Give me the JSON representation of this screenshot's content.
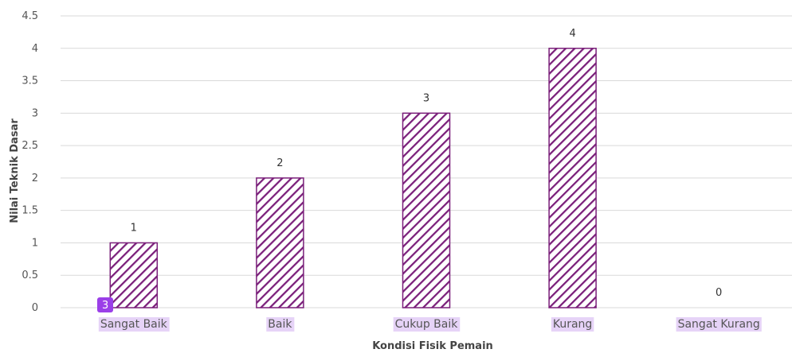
{
  "chart_data": {
    "type": "bar",
    "categories": [
      "Sangat Baik",
      "Baik",
      "Cukup Baik",
      "Kurang",
      "Sangat Kurang"
    ],
    "values": [
      1,
      2,
      3,
      4,
      0
    ],
    "data_labels": [
      "1",
      "2",
      "3",
      "4",
      "0"
    ],
    "xlabel": "Kondisi Fisik Pemain",
    "ylabel": "Nilai Teknik Dasar",
    "ylim": [
      0,
      4.5
    ],
    "yticks": [
      "0",
      "0.5",
      "1",
      "1.5",
      "2",
      "2.5",
      "3",
      "3.5",
      "4",
      "4.5"
    ],
    "grid": true,
    "legend": "none",
    "bar_pattern": "diagonal-hatch",
    "colors": {
      "bar": "#7a1f7a",
      "grid": "#d9d9d9",
      "category_highlight": "#e6d3f7",
      "badge": "#9b3fe8"
    }
  },
  "badge": {
    "label": "3"
  }
}
